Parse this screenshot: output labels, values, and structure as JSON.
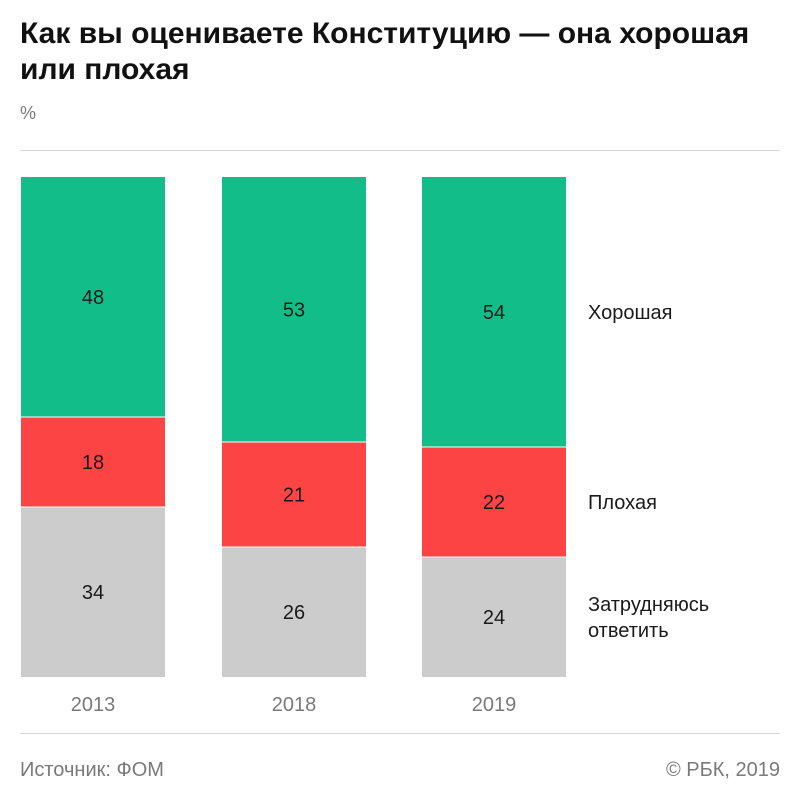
{
  "header": {
    "title": "Как вы оцениваете Конституцию — она хорошая или плохая",
    "unit": "%"
  },
  "footer": {
    "source": "Источник: ФОМ",
    "copyright": "© РБК, 2019"
  },
  "colors": {
    "good": "#13bd89",
    "bad": "#fc4445",
    "unsure": "#cccccc",
    "text": "#1a1a1a",
    "muted": "#7a7a7a",
    "rule": "#d6d6d6"
  },
  "chart_data": {
    "type": "bar",
    "stacked": true,
    "unit": "%",
    "categories": [
      "2013",
      "2018",
      "2019"
    ],
    "series": [
      {
        "name": "Хорошая",
        "color": "#13bd89",
        "values": [
          48,
          53,
          54
        ]
      },
      {
        "name": "Плохая",
        "color": "#fc4445",
        "values": [
          18,
          21,
          22
        ]
      },
      {
        "name": "Затрудняюсь ответить",
        "color": "#cccccc",
        "values": [
          34,
          26,
          24
        ]
      }
    ],
    "data_labels": true,
    "legend_placement": "right"
  }
}
